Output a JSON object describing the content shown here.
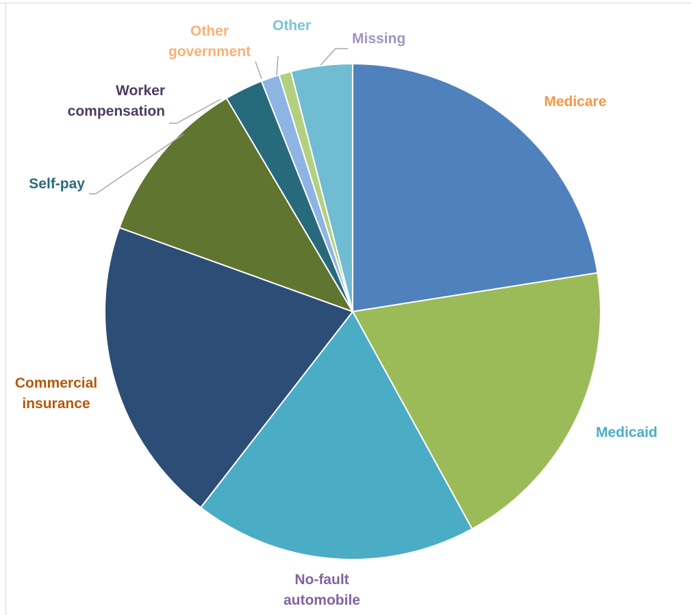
{
  "chart_data": {
    "type": "pie",
    "title": "",
    "slices": [
      {
        "label_lines": [
          "Medicare"
        ],
        "value": 22.5,
        "color": "#4f81bd",
        "label_color": "#f79646"
      },
      {
        "label_lines": [
          "Medicaid"
        ],
        "value": 19.5,
        "color": "#9bbb59",
        "label_color": "#4bacc6"
      },
      {
        "label_lines": [
          "No-fault",
          "automobile"
        ],
        "value": 18.5,
        "color": "#4bacc6",
        "label_color": "#8064a2"
      },
      {
        "label_lines": [
          "Commercial",
          "insurance"
        ],
        "value": 20.0,
        "color": "#2c4d75",
        "label_color": "#b65708"
      },
      {
        "label_lines": [
          "Self-pay"
        ],
        "value": 11.0,
        "color": "#5f7530",
        "label_color": "#276a7c"
      },
      {
        "label_lines": [
          "Worker",
          "compensation"
        ],
        "value": 2.5,
        "color": "#276a7c",
        "label_color": "#4d3b62"
      },
      {
        "label_lines": [
          "Other",
          "government"
        ],
        "value": 1.2,
        "color": "#8eb4e3",
        "label_color": "#f9b074"
      },
      {
        "label_lines": [
          "Other"
        ],
        "value": 0.8,
        "color": "#b3d080",
        "label_color": "#78c5d8"
      },
      {
        "label_lines": [
          "Missing"
        ],
        "value": 4.0,
        "color": "#70bcd2",
        "label_color": "#a094c0"
      }
    ],
    "start": "12 o'clock",
    "direction": "clockwise",
    "legend": "none (data labels)"
  }
}
